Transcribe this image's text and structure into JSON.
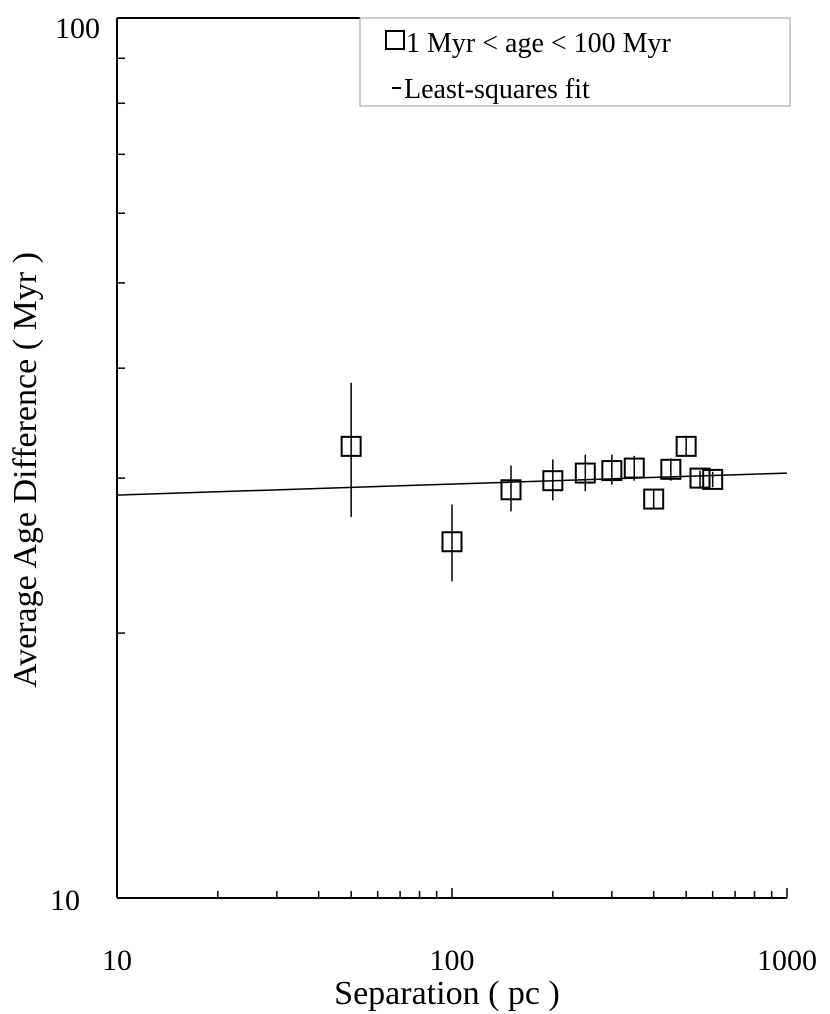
{
  "chart_data": {
    "type": "scatter",
    "title": "",
    "xlabel": "Separation ( pc )",
    "ylabel": "Average Age Difference ( Myr )",
    "x_scale": "log",
    "y_scale": "log",
    "xlim": [
      10,
      1000
    ],
    "ylim": [
      10,
      100
    ],
    "x_tick_labels": [
      "10",
      "100",
      "1000"
    ],
    "y_tick_labels": [
      "10",
      "100"
    ],
    "grid": false,
    "legend_position": "top-right",
    "series": [
      {
        "name": "1 Myr < age < 100 Myr",
        "marker": "open-square",
        "points": [
          {
            "x": 50,
            "y": 32.6,
            "err_low": 27.1,
            "err_high": 38.5
          },
          {
            "x": 100,
            "y": 25.4,
            "err_low": 22.9,
            "err_high": 28.0
          },
          {
            "x": 150,
            "y": 29.1,
            "err_low": 27.5,
            "err_high": 31.0
          },
          {
            "x": 200,
            "y": 29.8,
            "err_low": 28.3,
            "err_high": 31.5
          },
          {
            "x": 250,
            "y": 30.4,
            "err_low": 29.0,
            "err_high": 31.9
          },
          {
            "x": 300,
            "y": 30.6,
            "err_low": 29.5,
            "err_high": 31.9
          },
          {
            "x": 350,
            "y": 30.8,
            "err_low": 29.8,
            "err_high": 31.8
          },
          {
            "x": 400,
            "y": 28.4,
            "err_low": 27.7,
            "err_high": 29.1
          },
          {
            "x": 450,
            "y": 30.7,
            "err_low": 29.8,
            "err_high": 31.6
          },
          {
            "x": 500,
            "y": 32.6,
            "err_low": 31.8,
            "err_high": 33.4
          },
          {
            "x": 550,
            "y": 30.0,
            "err_low": 29.3,
            "err_high": 30.6
          },
          {
            "x": 600,
            "y": 29.9,
            "err_low": 29.3,
            "err_high": 30.5
          }
        ]
      },
      {
        "name": "Least-squares fit",
        "type": "line",
        "x": [
          10,
          1000
        ],
        "y": [
          28.7,
          30.4
        ]
      }
    ]
  },
  "colors": {
    "foreground": "#000000",
    "background": "#ffffff"
  }
}
